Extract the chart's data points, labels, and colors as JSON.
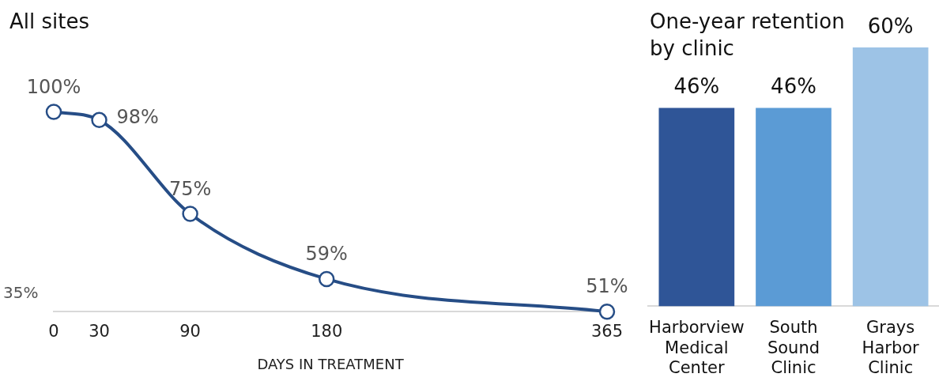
{
  "chart_data": [
    {
      "type": "line",
      "title": "All sites",
      "xlabel": "DAYS IN TREATMENT",
      "x": [
        0,
        30,
        90,
        180,
        365
      ],
      "series": [
        {
          "color": "#264d86",
          "values": [
            100,
            98,
            75,
            59,
            51
          ],
          "value_labels": [
            "100%",
            "98%",
            "75%",
            "59%",
            "51%"
          ]
        }
      ],
      "xlim": [
        0,
        365
      ],
      "xticks": [
        0,
        30,
        90,
        180,
        365
      ],
      "annotations": [
        "35%"
      ],
      "marker": "circle",
      "line_style": "solid",
      "grid": false,
      "legend": false
    },
    {
      "type": "bar",
      "title": "One-year retention by clinic",
      "categories": [
        "Harborview Medical Center",
        "South Sound Clinic",
        "Grays Harbor Clinic"
      ],
      "values": [
        46,
        46,
        60
      ],
      "colors": [
        "#2f5597",
        "#5b9bd5",
        "#9dc3e6"
      ],
      "value_labels": [
        "46%",
        "46%",
        "60%"
      ],
      "legend": false,
      "tick_labels": "x"
    }
  ]
}
